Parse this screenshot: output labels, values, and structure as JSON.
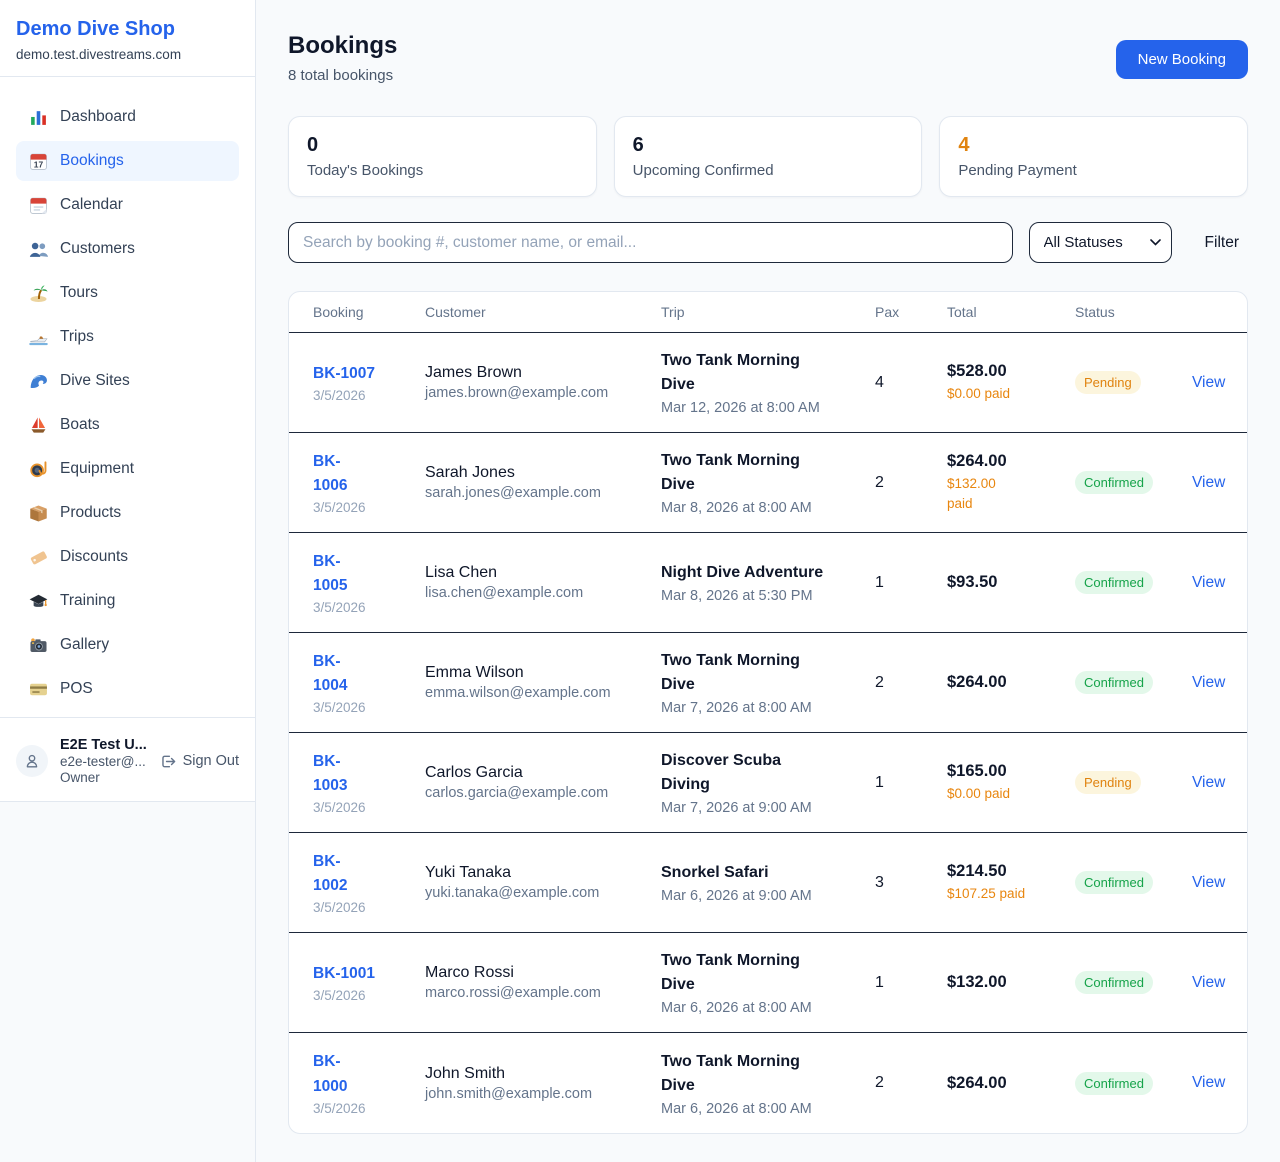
{
  "sidebar": {
    "title": "Demo Dive Shop",
    "subtitle": "demo.test.divestreams.com",
    "items": [
      {
        "label": "Dashboard",
        "icon": "bar-chart",
        "active": false
      },
      {
        "label": "Bookings",
        "icon": "calendar-date",
        "active": true
      },
      {
        "label": "Calendar",
        "icon": "calendar",
        "active": false
      },
      {
        "label": "Customers",
        "icon": "people",
        "active": false
      },
      {
        "label": "Tours",
        "icon": "island",
        "active": false
      },
      {
        "label": "Trips",
        "icon": "speedboat",
        "active": false
      },
      {
        "label": "Dive Sites",
        "icon": "wave",
        "active": false
      },
      {
        "label": "Boats",
        "icon": "sailboat",
        "active": false
      },
      {
        "label": "Equipment",
        "icon": "diving-mask",
        "active": false
      },
      {
        "label": "Products",
        "icon": "package",
        "active": false
      },
      {
        "label": "Discounts",
        "icon": "tag",
        "active": false
      },
      {
        "label": "Training",
        "icon": "graduation-cap",
        "active": false
      },
      {
        "label": "Gallery",
        "icon": "camera",
        "active": false
      },
      {
        "label": "POS",
        "icon": "credit-card",
        "active": false
      }
    ],
    "user": {
      "name": "E2E Test U...",
      "email": "e2e-tester@...",
      "role": "Owner",
      "sign_out": "Sign Out"
    }
  },
  "header": {
    "title": "Bookings",
    "subtitle": "8 total bookings",
    "new_booking": "New Booking"
  },
  "stats": [
    {
      "value": "0",
      "label": "Today's Bookings",
      "color": "#0f172a"
    },
    {
      "value": "6",
      "label": "Upcoming Confirmed",
      "color": "#0f172a"
    },
    {
      "value": "4",
      "label": "Pending Payment",
      "color": "#e0830f"
    }
  ],
  "filters": {
    "search_placeholder": "Search by booking #, customer name, or email...",
    "status_select": "All Statuses",
    "filter_label": "Filter"
  },
  "table": {
    "columns": [
      "Booking",
      "Customer",
      "Trip",
      "Pax",
      "Total",
      "Status"
    ],
    "view_label": "View",
    "rows": [
      {
        "id": "BK-1007",
        "date": "3/5/2026",
        "customer": "James Brown",
        "email": "james.brown@example.com",
        "trip": "Two Tank Morning\nDive",
        "trip_date": "Mar 12, 2026 at 8:00 AM",
        "pax": "4",
        "total": "$528.00",
        "paid": "$0.00 paid",
        "status": "Pending"
      },
      {
        "id": "BK-\n1006",
        "date": "3/5/2026",
        "customer": "Sarah Jones",
        "email": "sarah.jones@example.com",
        "trip": "Two Tank Morning\nDive",
        "trip_date": "Mar 8, 2026 at 8:00 AM",
        "pax": "2",
        "total": "$264.00",
        "paid": "$132.00\npaid",
        "status": "Confirmed"
      },
      {
        "id": "BK-\n1005",
        "date": "3/5/2026",
        "customer": "Lisa Chen",
        "email": "lisa.chen@example.com",
        "trip": "Night Dive Adventure",
        "trip_date": "Mar 8, 2026 at 5:30 PM",
        "pax": "1",
        "total": "$93.50",
        "paid": null,
        "status": "Confirmed"
      },
      {
        "id": "BK-\n1004",
        "date": "3/5/2026",
        "customer": "Emma Wilson",
        "email": "emma.wilson@example.com",
        "trip": "Two Tank Morning\nDive",
        "trip_date": "Mar 7, 2026 at 8:00 AM",
        "pax": "2",
        "total": "$264.00",
        "paid": null,
        "status": "Confirmed"
      },
      {
        "id": "BK-\n1003",
        "date": "3/5/2026",
        "customer": "Carlos Garcia",
        "email": "carlos.garcia@example.com",
        "trip": "Discover Scuba\nDiving",
        "trip_date": "Mar 7, 2026 at 9:00 AM",
        "pax": "1",
        "total": "$165.00",
        "paid": "$0.00 paid",
        "status": "Pending"
      },
      {
        "id": "BK-\n1002",
        "date": "3/5/2026",
        "customer": "Yuki Tanaka",
        "email": "yuki.tanaka@example.com",
        "trip": "Snorkel Safari",
        "trip_date": "Mar 6, 2026 at 9:00 AM",
        "pax": "3",
        "total": "$214.50",
        "paid": "$107.25 paid",
        "status": "Confirmed"
      },
      {
        "id": "BK-1001",
        "date": "3/5/2026",
        "customer": "Marco Rossi",
        "email": "marco.rossi@example.com",
        "trip": "Two Tank Morning\nDive",
        "trip_date": "Mar 6, 2026 at 8:00 AM",
        "pax": "1",
        "total": "$132.00",
        "paid": null,
        "status": "Confirmed"
      },
      {
        "id": "BK-\n1000",
        "date": "3/5/2026",
        "customer": "John Smith",
        "email": "john.smith@example.com",
        "trip": "Two Tank Morning\nDive",
        "trip_date": "Mar 6, 2026 at 8:00 AM",
        "pax": "2",
        "total": "$264.00",
        "paid": null,
        "status": "Confirmed"
      }
    ]
  }
}
